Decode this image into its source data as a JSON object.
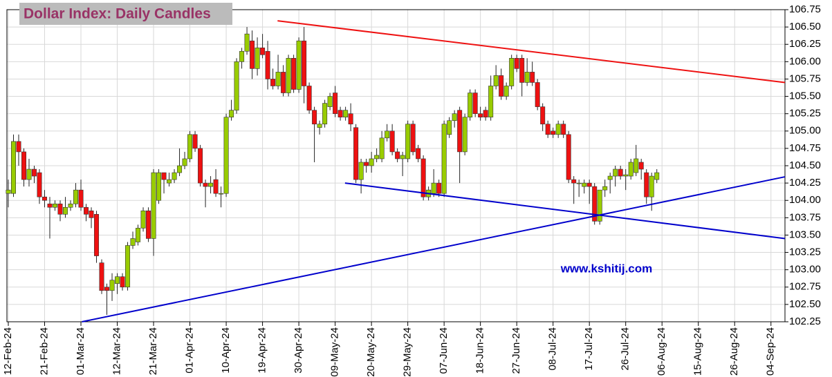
{
  "chart_data": {
    "type": "candlestick",
    "title": "Dollar Index: Daily Candles",
    "annotation": "www.kshitij.com",
    "up_color": "#99cc00",
    "down_color": "#ee1111",
    "grid": true,
    "x": [
      0,
      1,
      2,
      3,
      4,
      5,
      6,
      7,
      8,
      9,
      10,
      11,
      12,
      13,
      14,
      15,
      16,
      17,
      18,
      19,
      20,
      21,
      22,
      23,
      24,
      25,
      26,
      27,
      28,
      29,
      30,
      31,
      32,
      33,
      34,
      35,
      36,
      37,
      38,
      39,
      40,
      41,
      42,
      43,
      44,
      45,
      46,
      47,
      48,
      49,
      50,
      51,
      52,
      53,
      54,
      55,
      56,
      57,
      58,
      59,
      60,
      61,
      62,
      63,
      64,
      65,
      66,
      67,
      68,
      69,
      70,
      71,
      72,
      73,
      74,
      75,
      76,
      77,
      78,
      79,
      80,
      81,
      82,
      83,
      84,
      85,
      86,
      87,
      88,
      89,
      90,
      91,
      92,
      93,
      94,
      95,
      96,
      97,
      98,
      99,
      100,
      101,
      102,
      103,
      104,
      105,
      106,
      107,
      108,
      109,
      110,
      111,
      112,
      113,
      114,
      115,
      116,
      117,
      118,
      119,
      120,
      121,
      122,
      123,
      124,
      125
    ],
    "open": [
      104.1,
      104.1,
      104.85,
      104.7,
      104.3,
      104.45,
      104.4,
      104.05,
      103.95,
      103.9,
      103.95,
      103.8,
      103.9,
      103.95,
      104.15,
      103.9,
      103.85,
      103.8,
      103.1,
      102.75,
      102.7,
      102.8,
      102.9,
      102.75,
      103.35,
      103.4,
      103.6,
      103.85,
      103.45,
      104.0,
      104.4,
      104.25,
      104.3,
      104.4,
      104.5,
      104.6,
      104.95,
      104.75,
      104.25,
      104.2,
      104.3,
      104.1,
      104.1,
      105.2,
      105.3,
      106.0,
      106.15,
      106.3,
      105.9,
      106.2,
      106.15,
      105.75,
      105.65,
      105.85,
      105.55,
      106.05,
      105.6,
      106.3,
      105.65,
      105.3,
      105.05,
      105.1,
      105.35,
      105.55,
      105.3,
      105.2,
      105.25,
      105.05,
      104.3,
      104.55,
      104.5,
      104.6,
      104.6,
      104.9,
      105.0,
      104.7,
      104.6,
      104.6,
      105.1,
      104.75,
      104.6,
      104.05,
      104.1,
      104.25,
      104.1,
      104.95,
      105.15,
      105.3,
      104.7,
      105.2,
      105.55,
      105.25,
      105.3,
      105.2,
      105.65,
      105.8,
      105.5,
      105.65,
      106.05,
      106.05,
      105.7,
      105.85,
      105.7,
      105.35,
      105.1,
      105.0,
      104.95,
      105.1,
      104.95,
      104.3,
      104.25,
      104.2,
      104.25,
      104.2,
      103.7,
      104.15,
      104.3,
      104.35,
      104.45,
      104.35,
      104.35,
      104.4,
      104.55,
      104.4,
      104.05,
      104.3
    ],
    "high": [
      104.3,
      104.95,
      104.95,
      104.75,
      104.6,
      104.5,
      104.45,
      104.15,
      104.05,
      104.0,
      104.0,
      104.05,
      104.0,
      104.25,
      104.3,
      103.95,
      103.9,
      103.85,
      103.15,
      102.8,
      102.95,
      102.95,
      102.95,
      103.4,
      103.55,
      103.65,
      103.9,
      103.9,
      104.45,
      104.45,
      104.4,
      104.4,
      104.45,
      104.75,
      104.7,
      105.0,
      105.0,
      104.8,
      104.3,
      104.35,
      104.45,
      104.2,
      105.25,
      105.45,
      106.05,
      106.2,
      106.5,
      106.45,
      106.35,
      106.4,
      106.3,
      105.9,
      106.1,
      105.95,
      106.1,
      106.1,
      106.35,
      106.5,
      105.7,
      105.35,
      105.15,
      105.45,
      105.55,
      105.65,
      105.35,
      105.35,
      105.4,
      105.1,
      104.6,
      104.6,
      104.7,
      104.75,
      105.0,
      105.1,
      105.1,
      104.75,
      104.7,
      105.15,
      105.15,
      104.8,
      104.65,
      104.2,
      104.45,
      104.3,
      105.15,
      105.2,
      105.3,
      105.35,
      105.25,
      105.6,
      105.6,
      105.35,
      105.35,
      105.8,
      105.95,
      105.9,
      105.7,
      106.1,
      106.1,
      106.1,
      106.05,
      106.0,
      105.75,
      105.4,
      105.15,
      105.05,
      105.15,
      105.15,
      105.0,
      104.35,
      104.3,
      104.3,
      104.3,
      104.25,
      104.15,
      104.3,
      104.4,
      104.5,
      104.5,
      104.45,
      104.6,
      104.8,
      104.6,
      104.45,
      104.4,
      104.45
    ],
    "low": [
      103.9,
      104.05,
      104.5,
      104.2,
      104.2,
      104.25,
      103.95,
      103.9,
      103.45,
      103.85,
      103.7,
      103.75,
      103.85,
      103.9,
      103.85,
      103.7,
      103.6,
      103.1,
      102.65,
      102.35,
      102.55,
      102.65,
      102.7,
      102.7,
      103.3,
      103.35,
      103.55,
      103.4,
      103.2,
      103.95,
      104.1,
      104.2,
      104.25,
      104.35,
      104.45,
      104.55,
      104.7,
      104.2,
      103.9,
      104.1,
      104.05,
      103.9,
      104.05,
      105.15,
      105.25,
      105.9,
      106.1,
      105.75,
      105.8,
      106.05,
      105.6,
      105.6,
      105.6,
      105.5,
      105.5,
      105.55,
      105.55,
      105.4,
      105.25,
      104.55,
      104.95,
      105.05,
      105.3,
      105.2,
      105.15,
      105.15,
      105.0,
      104.25,
      104.1,
      104.4,
      104.4,
      104.55,
      104.55,
      104.85,
      104.65,
      104.55,
      104.35,
      104.55,
      104.65,
      104.55,
      104.0,
      104.0,
      104.05,
      104.05,
      104.05,
      104.9,
      105.05,
      104.25,
      104.65,
      105.15,
      105.2,
      105.15,
      105.15,
      105.15,
      105.6,
      105.45,
      105.45,
      105.6,
      105.85,
      105.5,
      105.65,
      105.65,
      105.3,
      105.0,
      104.9,
      104.9,
      104.9,
      104.9,
      104.25,
      103.95,
      104.05,
      104.1,
      103.95,
      103.65,
      103.65,
      104.05,
      104.1,
      104.2,
      104.3,
      104.15,
      104.3,
      104.35,
      104.3,
      103.95,
      103.85,
      104.25
    ],
    "close": [
      104.15,
      104.85,
      104.7,
      104.3,
      104.45,
      104.35,
      104.05,
      104.0,
      103.9,
      103.95,
      103.8,
      103.9,
      103.95,
      104.15,
      103.9,
      103.8,
      103.75,
      103.2,
      102.7,
      102.7,
      102.85,
      102.9,
      102.75,
      103.35,
      103.45,
      103.6,
      103.85,
      103.45,
      104.4,
      104.4,
      104.3,
      104.3,
      104.4,
      104.5,
      104.6,
      104.95,
      104.75,
      104.25,
      104.2,
      104.25,
      104.1,
      104.1,
      105.2,
      105.3,
      106.0,
      106.15,
      106.4,
      105.9,
      106.2,
      106.1,
      105.75,
      105.65,
      105.85,
      105.55,
      106.05,
      105.6,
      106.3,
      105.65,
      105.3,
      105.1,
      105.1,
      105.4,
      105.5,
      105.25,
      105.2,
      105.3,
      105.1,
      104.3,
      104.55,
      104.5,
      104.6,
      104.65,
      104.9,
      105.0,
      104.7,
      104.6,
      104.65,
      105.1,
      104.7,
      104.6,
      104.05,
      104.15,
      104.25,
      104.1,
      105.1,
      105.15,
      105.25,
      104.7,
      105.2,
      105.55,
      105.25,
      105.2,
      105.2,
      105.65,
      105.8,
      105.5,
      105.65,
      106.05,
      105.9,
      105.7,
      105.85,
      105.7,
      105.35,
      105.1,
      104.95,
      104.95,
      105.1,
      104.95,
      104.3,
      104.25,
      104.25,
      104.25,
      104.2,
      103.7,
      104.15,
      104.2,
      104.35,
      104.45,
      104.35,
      104.37,
      104.55,
      104.6,
      104.45,
      104.05,
      104.35,
      104.4
    ],
    "lines": [
      {
        "color": "#ee1111",
        "x": [
          51.9,
          149.7
        ],
        "y": [
          106.59,
          105.7
        ]
      },
      {
        "color": "#0000cc",
        "x": [
          14.2,
          149.7
        ],
        "y": [
          102.25,
          104.34
        ]
      },
      {
        "color": "#0000cc",
        "x": [
          64.9,
          149.7
        ],
        "y": [
          104.25,
          103.45
        ]
      }
    ],
    "xlim": [
      0,
      149.7
    ],
    "xticks": [
      {
        "value": 0,
        "label": "12-Feb-24"
      },
      {
        "value": 7,
        "label": "21-Feb-24"
      },
      {
        "value": 14,
        "label": "01-Mar-24"
      },
      {
        "value": 21,
        "label": "12-Mar-24"
      },
      {
        "value": 28,
        "label": "21-Mar-24"
      },
      {
        "value": 35,
        "label": "01-Apr-24"
      },
      {
        "value": 42,
        "label": "10-Apr-24"
      },
      {
        "value": 49,
        "label": "19-Apr-24"
      },
      {
        "value": 56,
        "label": "30-Apr-24"
      },
      {
        "value": 63,
        "label": "09-May-24"
      },
      {
        "value": 70,
        "label": "20-May-24"
      },
      {
        "value": 77,
        "label": "29-May-24"
      },
      {
        "value": 84,
        "label": "07-Jun-24"
      },
      {
        "value": 91,
        "label": "18-Jun-24"
      },
      {
        "value": 98,
        "label": "27-Jun-24"
      },
      {
        "value": 105,
        "label": "08-Jul-24"
      },
      {
        "value": 112,
        "label": "17-Jul-24"
      },
      {
        "value": 119,
        "label": "26-Jul-24"
      },
      {
        "value": 126,
        "label": "06-Aug-24"
      },
      {
        "value": 133,
        "label": "15-Aug-24"
      },
      {
        "value": 140,
        "label": "26-Aug-24"
      },
      {
        "value": 147,
        "label": "04-Sep-24"
      }
    ],
    "ylim": [
      102.25,
      106.75
    ],
    "yticks": [
      102.25,
      {
        "value": 102.5,
        "label": "102.50"
      },
      102.75,
      {
        "value": 103,
        "label": "103.00"
      },
      103.25,
      {
        "value": 103.5,
        "label": "103.50"
      },
      103.75,
      {
        "value": 104,
        "label": "104.00"
      },
      104.25,
      {
        "value": 104.5,
        "label": "104.50"
      },
      104.75,
      {
        "value": 105,
        "label": "105.00"
      },
      105.25,
      {
        "value": 105.5,
        "label": "105.50"
      },
      105.75,
      {
        "value": 106,
        "label": "106.00"
      },
      106.25,
      {
        "value": 106.5,
        "label": "106.50"
      },
      106.75
    ]
  }
}
